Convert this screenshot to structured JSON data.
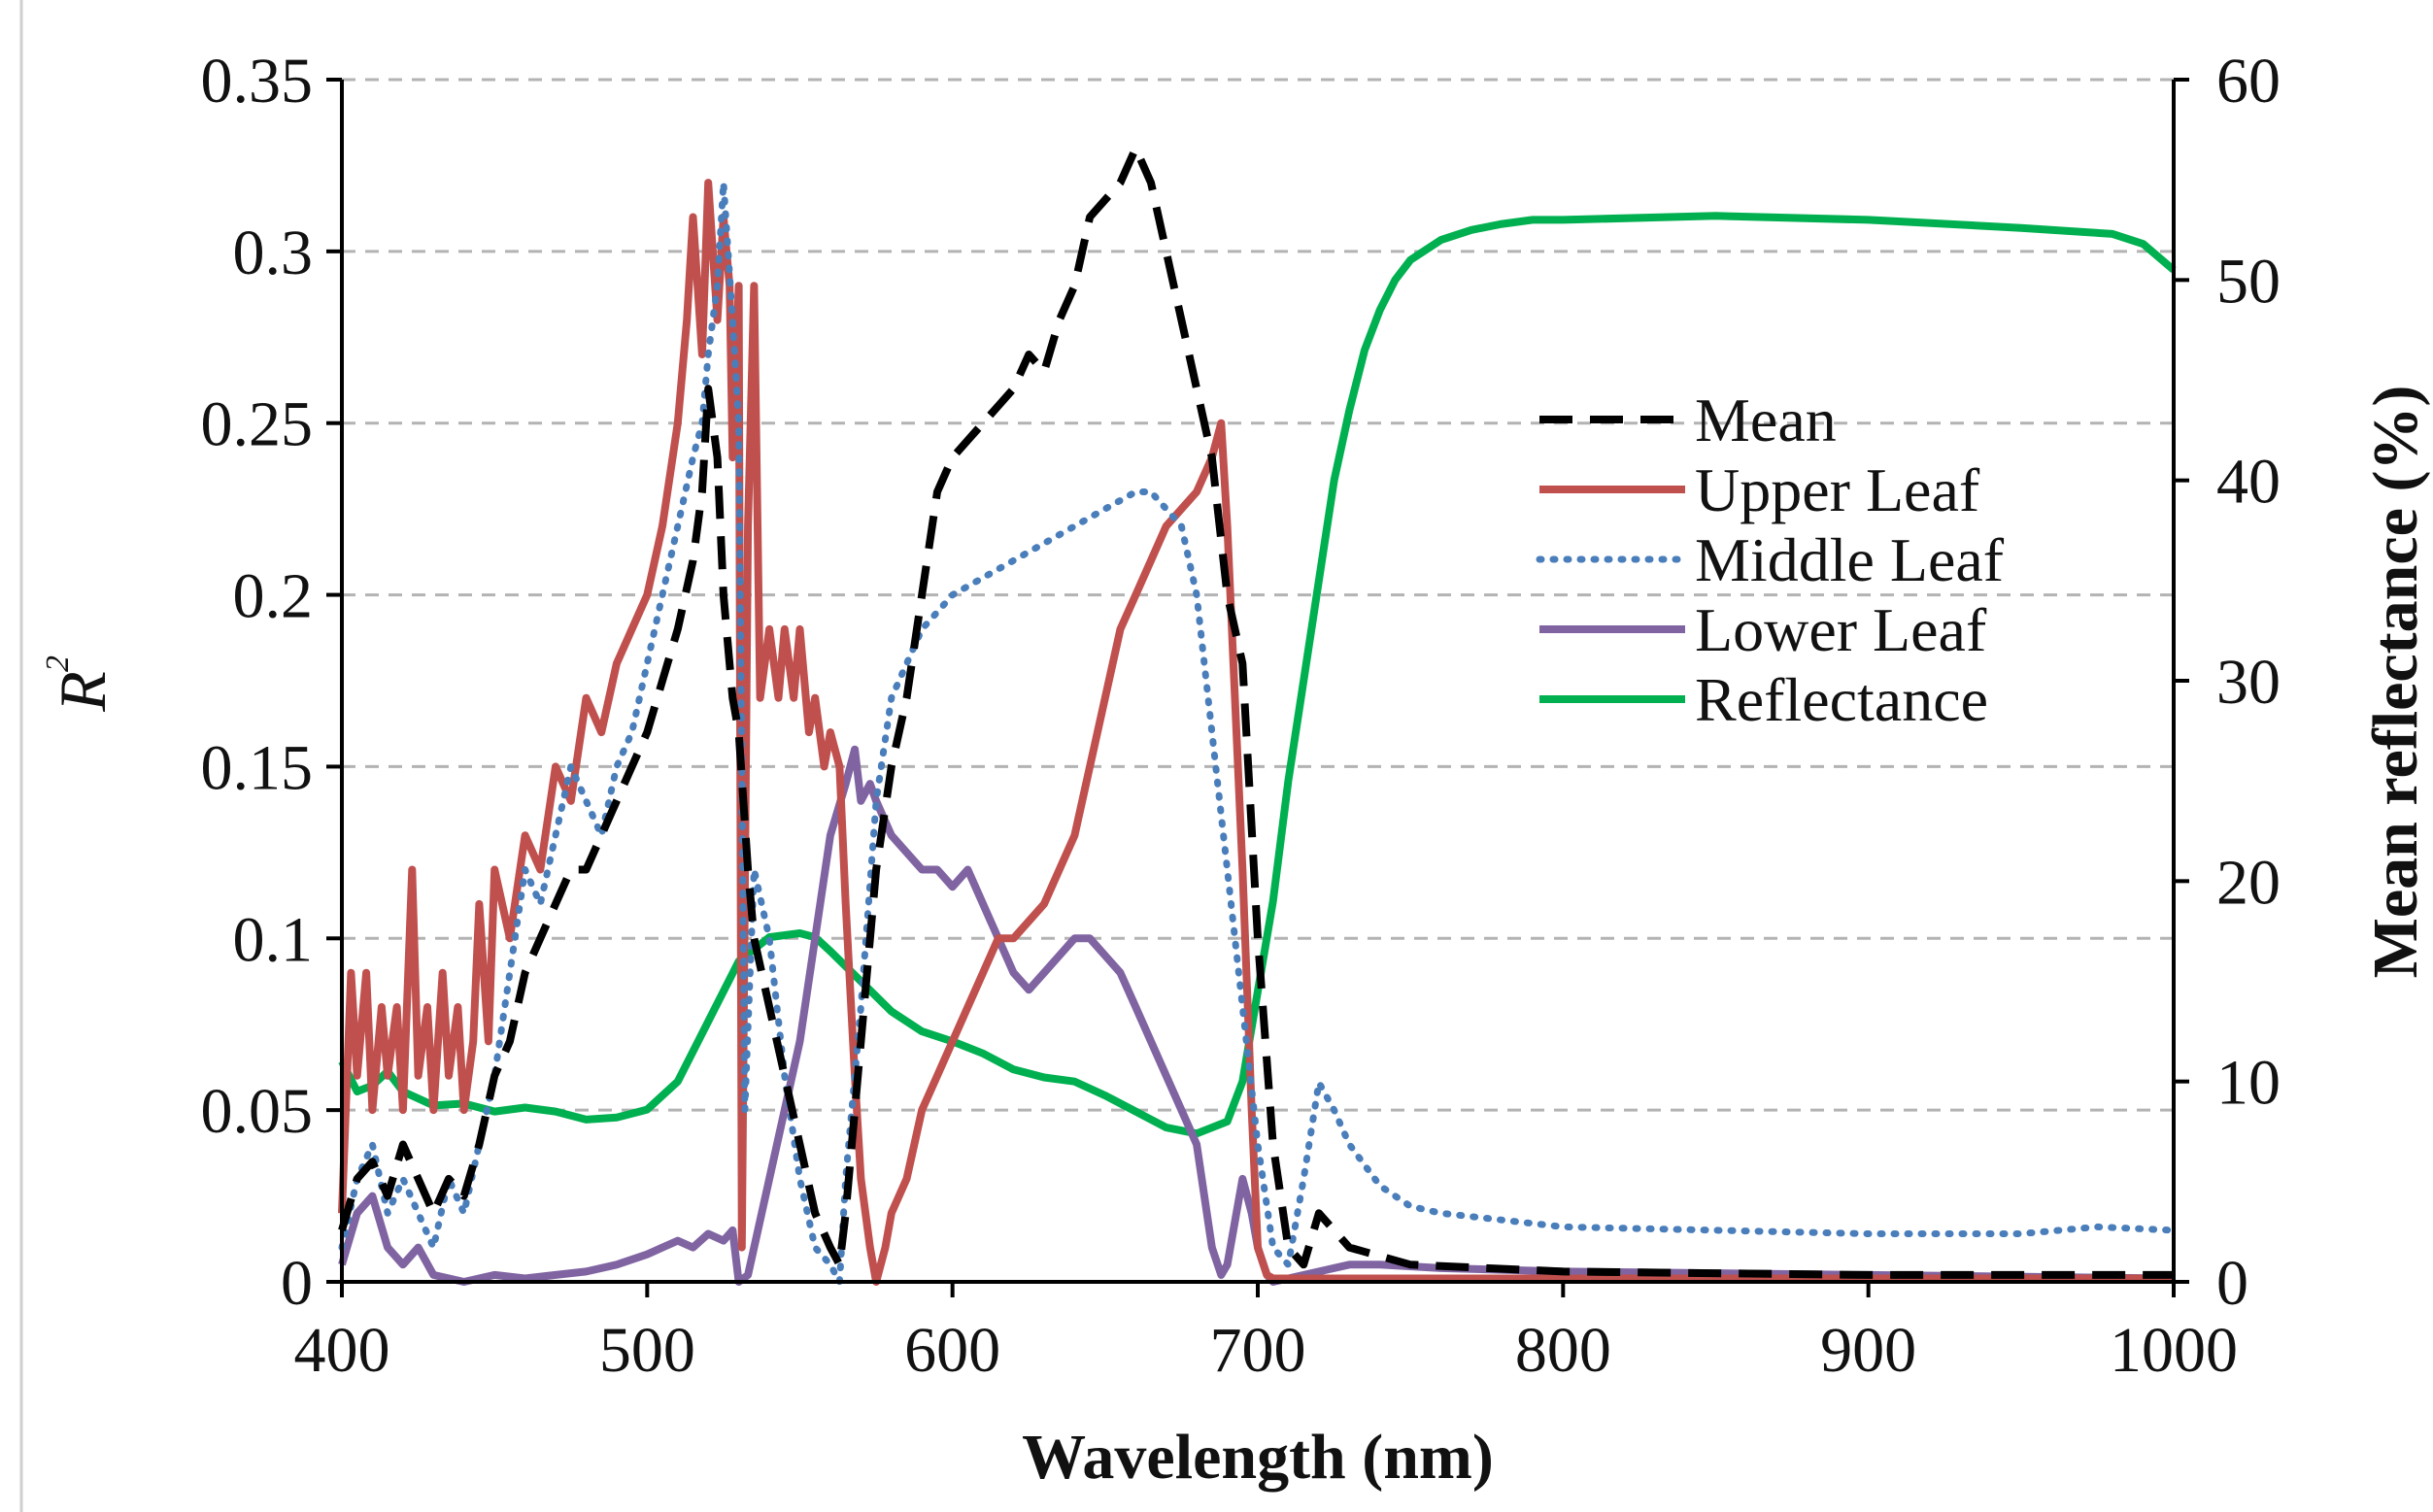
{
  "chart_data": {
    "type": "line",
    "xlabel": "Wavelength (nm)",
    "ylabel": "R",
    "ylabel_sup": "2",
    "y2label": "Mean reflectance (%)",
    "xlim": [
      400,
      1000
    ],
    "ylim": [
      0,
      0.35
    ],
    "y2lim": [
      0,
      60
    ],
    "x_ticks": [
      400,
      500,
      600,
      700,
      800,
      900,
      1000
    ],
    "x_tick_labels": [
      "400",
      "500",
      "600",
      "700",
      "800",
      "900",
      "1000"
    ],
    "y_ticks": [
      0,
      0.05,
      0.1,
      0.15,
      0.2,
      0.25,
      0.3,
      0.35
    ],
    "y_tick_labels": [
      "0",
      "0.05",
      "0.1",
      "0.15",
      "0.2",
      "0.25",
      "0.3",
      "0.35"
    ],
    "y2_ticks": [
      0,
      10,
      20,
      30,
      40,
      50,
      60
    ],
    "y2_tick_labels": [
      "0",
      "10",
      "20",
      "30",
      "40",
      "50",
      "60"
    ],
    "grid": "horizontal dashed",
    "legend_position": "center-right",
    "series": [
      {
        "name": "Mean",
        "color": "#000000",
        "style": "dashed",
        "axis": "left",
        "x": [
          400,
          405,
          410,
          415,
          420,
          425,
          430,
          435,
          440,
          445,
          450,
          455,
          460,
          465,
          470,
          475,
          480,
          485,
          490,
          495,
          500,
          505,
          510,
          515,
          518,
          520,
          523,
          525,
          528,
          530,
          533,
          535,
          540,
          545,
          550,
          555,
          560,
          563,
          565,
          570,
          575,
          580,
          585,
          590,
          595,
          600,
          605,
          610,
          615,
          620,
          625,
          630,
          635,
          640,
          645,
          650,
          655,
          660,
          665,
          670,
          675,
          680,
          685,
          690,
          695,
          700,
          705,
          710,
          715,
          720,
          730,
          750,
          800,
          900,
          1000
        ],
        "y": [
          0.015,
          0.03,
          0.035,
          0.025,
          0.04,
          0.03,
          0.02,
          0.03,
          0.025,
          0.04,
          0.06,
          0.07,
          0.09,
          0.1,
          0.11,
          0.12,
          0.12,
          0.13,
          0.14,
          0.15,
          0.16,
          0.175,
          0.19,
          0.21,
          0.23,
          0.26,
          0.24,
          0.2,
          0.17,
          0.16,
          0.12,
          0.1,
          0.08,
          0.06,
          0.04,
          0.02,
          0.01,
          0.005,
          0.02,
          0.07,
          0.12,
          0.15,
          0.17,
          0.2,
          0.23,
          0.24,
          0.245,
          0.25,
          0.255,
          0.26,
          0.27,
          0.265,
          0.28,
          0.29,
          0.31,
          0.315,
          0.32,
          0.33,
          0.32,
          0.3,
          0.28,
          0.26,
          0.24,
          0.2,
          0.18,
          0.1,
          0.04,
          0.01,
          0.005,
          0.02,
          0.01,
          0.005,
          0.003,
          0.002,
          0.002
        ]
      },
      {
        "name": "Upper Leaf",
        "color": "#c0504d",
        "style": "solid",
        "axis": "left",
        "x": [
          400,
          403,
          405,
          408,
          410,
          413,
          415,
          418,
          420,
          423,
          425,
          428,
          430,
          433,
          435,
          438,
          440,
          443,
          445,
          448,
          450,
          455,
          460,
          465,
          470,
          475,
          480,
          485,
          490,
          495,
          500,
          505,
          510,
          513,
          515,
          518,
          520,
          523,
          525,
          527,
          528,
          530,
          531,
          533,
          535,
          537,
          540,
          543,
          545,
          548,
          550,
          553,
          555,
          558,
          560,
          563,
          565,
          568,
          570,
          573,
          575,
          578,
          580,
          585,
          590,
          595,
          600,
          605,
          610,
          615,
          620,
          625,
          630,
          635,
          640,
          645,
          650,
          655,
          660,
          665,
          670,
          675,
          680,
          685,
          688,
          690,
          692,
          695,
          698,
          700,
          703,
          705,
          710,
          715,
          720,
          730,
          750,
          800,
          900,
          1000
        ],
        "y": [
          0.02,
          0.09,
          0.06,
          0.09,
          0.05,
          0.08,
          0.06,
          0.08,
          0.05,
          0.12,
          0.06,
          0.08,
          0.05,
          0.09,
          0.06,
          0.08,
          0.05,
          0.07,
          0.11,
          0.07,
          0.12,
          0.1,
          0.13,
          0.12,
          0.15,
          0.14,
          0.17,
          0.16,
          0.18,
          0.19,
          0.2,
          0.22,
          0.25,
          0.28,
          0.31,
          0.27,
          0.32,
          0.28,
          0.31,
          0.29,
          0.24,
          0.29,
          0.01,
          0.22,
          0.29,
          0.17,
          0.19,
          0.17,
          0.19,
          0.17,
          0.19,
          0.16,
          0.17,
          0.15,
          0.16,
          0.15,
          0.11,
          0.06,
          0.03,
          0.01,
          0.0,
          0.01,
          0.02,
          0.03,
          0.05,
          0.06,
          0.07,
          0.08,
          0.09,
          0.1,
          0.1,
          0.105,
          0.11,
          0.12,
          0.13,
          0.15,
          0.17,
          0.19,
          0.2,
          0.21,
          0.22,
          0.225,
          0.23,
          0.24,
          0.25,
          0.22,
          0.18,
          0.12,
          0.05,
          0.01,
          0.002,
          0.001,
          0.001,
          0.001,
          0.001,
          0.001,
          0.001,
          0.001,
          0.001,
          0.001
        ]
      },
      {
        "name": "Middle Leaf",
        "color": "#4a7ebb",
        "style": "dotted",
        "axis": "left",
        "x": [
          400,
          405,
          410,
          415,
          420,
          425,
          430,
          435,
          440,
          445,
          450,
          455,
          460,
          465,
          470,
          475,
          480,
          485,
          490,
          495,
          500,
          505,
          510,
          515,
          518,
          520,
          523,
          525,
          528,
          530,
          532,
          535,
          540,
          545,
          550,
          555,
          560,
          563,
          565,
          570,
          575,
          580,
          585,
          590,
          595,
          600,
          610,
          620,
          630,
          640,
          650,
          660,
          665,
          670,
          675,
          680,
          685,
          690,
          695,
          700,
          705,
          710,
          715,
          720,
          725,
          730,
          740,
          750,
          760,
          780,
          800,
          850,
          900,
          950,
          975,
          1000
        ],
        "y": [
          0.01,
          0.03,
          0.04,
          0.02,
          0.03,
          0.02,
          0.01,
          0.03,
          0.02,
          0.04,
          0.06,
          0.09,
          0.12,
          0.11,
          0.13,
          0.15,
          0.14,
          0.13,
          0.15,
          0.16,
          0.18,
          0.2,
          0.22,
          0.24,
          0.25,
          0.27,
          0.29,
          0.32,
          0.28,
          0.25,
          0.05,
          0.12,
          0.1,
          0.06,
          0.03,
          0.01,
          0.005,
          0.0,
          0.03,
          0.08,
          0.14,
          0.17,
          0.18,
          0.19,
          0.195,
          0.2,
          0.205,
          0.21,
          0.215,
          0.22,
          0.225,
          0.23,
          0.23,
          0.225,
          0.22,
          0.2,
          0.16,
          0.12,
          0.08,
          0.04,
          0.01,
          0.005,
          0.03,
          0.058,
          0.05,
          0.04,
          0.028,
          0.022,
          0.02,
          0.018,
          0.016,
          0.015,
          0.014,
          0.014,
          0.016,
          0.015
        ]
      },
      {
        "name": "Lower Leaf",
        "color": "#8064a2",
        "style": "solid",
        "axis": "left",
        "x": [
          400,
          405,
          410,
          415,
          420,
          425,
          430,
          440,
          450,
          460,
          470,
          480,
          490,
          500,
          505,
          510,
          515,
          520,
          525,
          528,
          530,
          533,
          535,
          540,
          545,
          550,
          555,
          560,
          565,
          568,
          570,
          573,
          575,
          580,
          585,
          590,
          595,
          600,
          605,
          610,
          615,
          620,
          625,
          630,
          635,
          640,
          645,
          650,
          655,
          660,
          665,
          670,
          675,
          680,
          685,
          688,
          690,
          693,
          695,
          698,
          700,
          703,
          705,
          710,
          720,
          730,
          740,
          760,
          800,
          900,
          1000
        ],
        "y": [
          0.005,
          0.02,
          0.025,
          0.01,
          0.005,
          0.01,
          0.002,
          0.0,
          0.002,
          0.001,
          0.002,
          0.003,
          0.005,
          0.008,
          0.01,
          0.012,
          0.01,
          0.014,
          0.012,
          0.015,
          0.0,
          0.002,
          0.01,
          0.03,
          0.05,
          0.07,
          0.1,
          0.13,
          0.145,
          0.155,
          0.14,
          0.145,
          0.14,
          0.13,
          0.125,
          0.12,
          0.12,
          0.115,
          0.12,
          0.11,
          0.1,
          0.09,
          0.085,
          0.09,
          0.095,
          0.1,
          0.1,
          0.095,
          0.09,
          0.08,
          0.07,
          0.06,
          0.05,
          0.04,
          0.01,
          0.002,
          0.005,
          0.02,
          0.03,
          0.02,
          0.01,
          0.002,
          0.0,
          0.001,
          0.003,
          0.005,
          0.005,
          0.004,
          0.003,
          0.002,
          0.001
        ]
      },
      {
        "name": "Reflectance",
        "color": "#00b050",
        "style": "solid",
        "axis": "right",
        "x": [
          400,
          405,
          410,
          415,
          420,
          430,
          440,
          450,
          460,
          470,
          480,
          490,
          500,
          510,
          520,
          530,
          540,
          550,
          555,
          560,
          570,
          580,
          590,
          600,
          610,
          620,
          630,
          640,
          650,
          660,
          670,
          680,
          690,
          695,
          700,
          705,
          710,
          715,
          720,
          725,
          730,
          735,
          740,
          745,
          750,
          755,
          760,
          770,
          780,
          790,
          800,
          850,
          900,
          950,
          980,
          990,
          1000
        ],
        "y": [
          11,
          9.5,
          9.8,
          10.5,
          9.5,
          8.8,
          8.9,
          8.5,
          8.7,
          8.5,
          8.1,
          8.2,
          8.6,
          10,
          13,
          16,
          17.2,
          17.4,
          17.2,
          16.5,
          15,
          13.5,
          12.5,
          12,
          11.4,
          10.6,
          10.2,
          10,
          9.3,
          8.5,
          7.7,
          7.4,
          8,
          10,
          14.5,
          19,
          25,
          30,
          35,
          40,
          43.5,
          46.5,
          48.5,
          50,
          51,
          51.5,
          52,
          52.5,
          52.8,
          53,
          53,
          53.2,
          53,
          52.6,
          52.3,
          51.8,
          50.5
        ]
      }
    ]
  }
}
